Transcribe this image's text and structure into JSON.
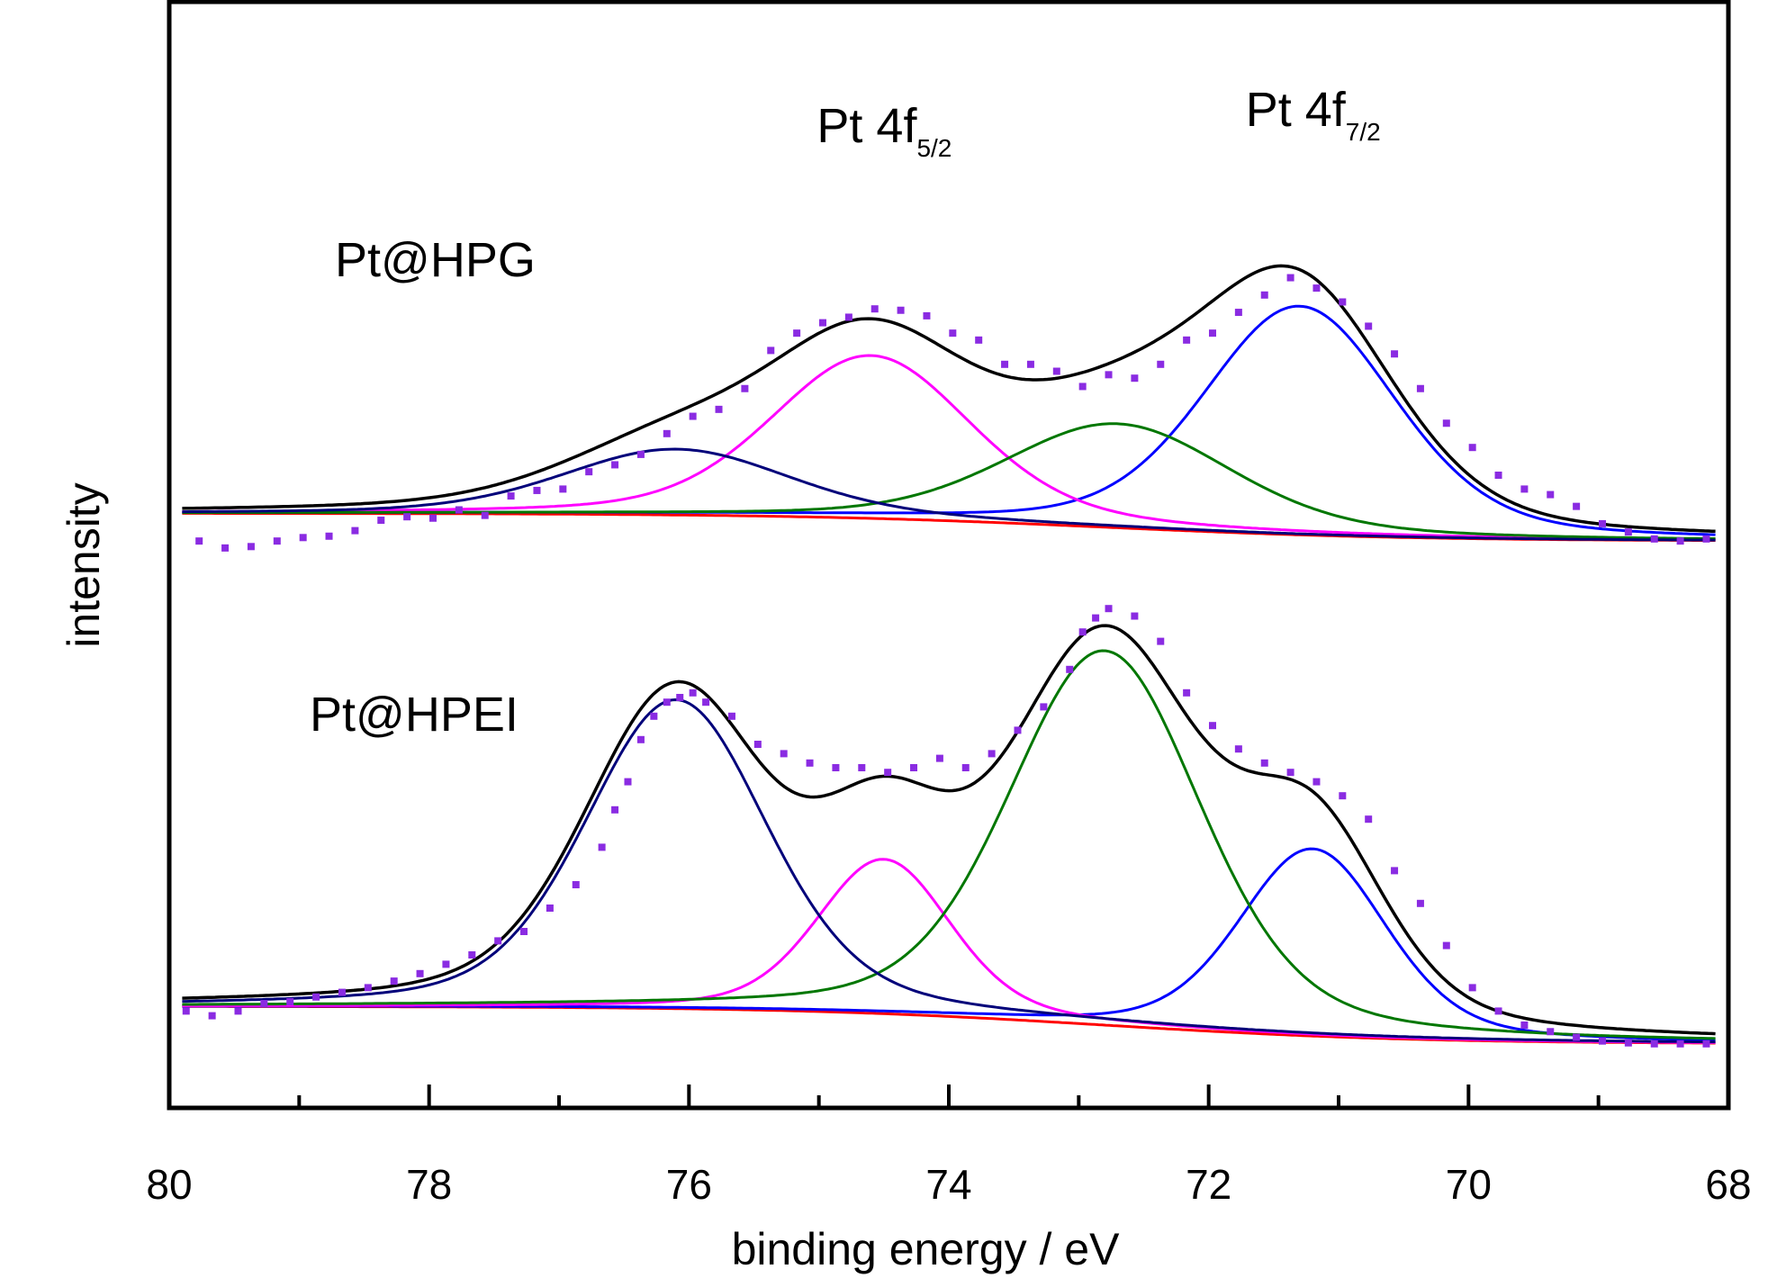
{
  "chart_data": {
    "type": "line",
    "xlabel": "binding energy / eV",
    "ylabel": "intensity",
    "xlim": [
      80,
      68
    ],
    "x_reversed": true,
    "xticks_major": [
      80,
      78,
      76,
      74,
      72,
      70,
      68
    ],
    "xticks_minor": [
      79,
      77,
      75,
      73,
      71,
      69
    ],
    "yticks": [],
    "grid": false,
    "legend": "none",
    "colors": {
      "data": "#8a2be2",
      "envelope": "#000000",
      "pt0_f72": "#0000ff",
      "pt0_f52": "#ff00ff",
      "pt2_f72": "#007700",
      "pt2_f52": "#00007a",
      "background": "#ff0000"
    },
    "annotations": [
      {
        "text": "Pt 4f",
        "sub": "5/2",
        "x": 74.6
      },
      {
        "text": "Pt 4f",
        "sub": "7/2",
        "x": 71.3
      }
    ],
    "panels": [
      {
        "label": "Pt@HPG",
        "background": {
          "start": 0.45,
          "end": 0.05,
          "center": 72.8,
          "width": 1.2
        },
        "components": [
          {
            "color_key": "pt0_f72",
            "center": 71.3,
            "sigma": 0.72,
            "amp": 3.3
          },
          {
            "color_key": "pt0_f52",
            "center": 74.6,
            "sigma": 0.75,
            "amp": 2.35
          },
          {
            "color_key": "pt2_f72",
            "center": 72.7,
            "sigma": 0.85,
            "amp": 1.5
          },
          {
            "color_key": "pt2_f52",
            "center": 76.1,
            "sigma": 0.85,
            "amp": 0.95
          }
        ],
        "data_points": [
          [
            79.77,
            0.05
          ],
          [
            79.57,
            -0.05
          ],
          [
            79.37,
            -0.03
          ],
          [
            79.17,
            0.05
          ],
          [
            78.97,
            0.1
          ],
          [
            78.77,
            0.12
          ],
          [
            78.57,
            0.2
          ],
          [
            78.37,
            0.35
          ],
          [
            78.17,
            0.4
          ],
          [
            77.97,
            0.38
          ],
          [
            77.77,
            0.5
          ],
          [
            77.57,
            0.42
          ],
          [
            77.37,
            0.7
          ],
          [
            77.17,
            0.78
          ],
          [
            76.97,
            0.8
          ],
          [
            76.77,
            1.05
          ],
          [
            76.57,
            1.15
          ],
          [
            76.37,
            1.3
          ],
          [
            76.17,
            1.6
          ],
          [
            75.97,
            1.85
          ],
          [
            75.77,
            1.95
          ],
          [
            75.57,
            2.25
          ],
          [
            75.37,
            2.8
          ],
          [
            75.17,
            3.05
          ],
          [
            74.97,
            3.2
          ],
          [
            74.77,
            3.28
          ],
          [
            74.57,
            3.4
          ],
          [
            74.37,
            3.38
          ],
          [
            74.17,
            3.3
          ],
          [
            73.97,
            3.05
          ],
          [
            73.77,
            2.95
          ],
          [
            73.57,
            2.6
          ],
          [
            73.37,
            2.6
          ],
          [
            73.17,
            2.5
          ],
          [
            72.97,
            2.28
          ],
          [
            72.77,
            2.45
          ],
          [
            72.57,
            2.4
          ],
          [
            72.37,
            2.6
          ],
          [
            72.17,
            2.95
          ],
          [
            71.97,
            3.05
          ],
          [
            71.77,
            3.35
          ],
          [
            71.57,
            3.6
          ],
          [
            71.37,
            3.85
          ],
          [
            71.17,
            3.7
          ],
          [
            70.97,
            3.5
          ],
          [
            70.77,
            3.15
          ],
          [
            70.57,
            2.75
          ],
          [
            70.37,
            2.25
          ],
          [
            70.17,
            1.75
          ],
          [
            69.97,
            1.4
          ],
          [
            69.77,
            1.0
          ],
          [
            69.57,
            0.8
          ],
          [
            69.37,
            0.72
          ],
          [
            69.17,
            0.55
          ],
          [
            68.97,
            0.3
          ],
          [
            68.77,
            0.18
          ],
          [
            68.57,
            0.08
          ],
          [
            68.37,
            0.05
          ],
          [
            68.17,
            0.08
          ]
        ]
      },
      {
        "label": "Pt@HPEI",
        "background": {
          "start": 0.45,
          "end": 0.05,
          "center": 72.8,
          "width": 1.2
        },
        "components": [
          {
            "color_key": "pt0_f72",
            "center": 71.2,
            "sigma": 0.55,
            "amp": 2.0
          },
          {
            "color_key": "pt0_f52",
            "center": 74.5,
            "sigma": 0.5,
            "amp": 1.65
          },
          {
            "color_key": "pt2_f72",
            "center": 72.8,
            "sigma": 0.72,
            "amp": 4.0
          },
          {
            "color_key": "pt2_f52",
            "center": 76.1,
            "sigma": 0.68,
            "amp": 3.3
          }
        ],
        "data_points": [
          [
            79.87,
            0.4
          ],
          [
            79.67,
            0.35
          ],
          [
            79.47,
            0.4
          ],
          [
            79.27,
            0.48
          ],
          [
            79.07,
            0.5
          ],
          [
            78.87,
            0.55
          ],
          [
            78.67,
            0.6
          ],
          [
            78.47,
            0.65
          ],
          [
            78.27,
            0.72
          ],
          [
            78.07,
            0.8
          ],
          [
            77.87,
            0.9
          ],
          [
            77.67,
            1.0
          ],
          [
            77.47,
            1.15
          ],
          [
            77.27,
            1.25
          ],
          [
            77.07,
            1.5
          ],
          [
            76.87,
            1.75
          ],
          [
            76.67,
            2.15
          ],
          [
            76.57,
            2.55
          ],
          [
            76.47,
            2.85
          ],
          [
            76.37,
            3.3
          ],
          [
            76.27,
            3.55
          ],
          [
            76.17,
            3.7
          ],
          [
            76.07,
            3.75
          ],
          [
            75.97,
            3.8
          ],
          [
            75.87,
            3.7
          ],
          [
            75.67,
            3.55
          ],
          [
            75.47,
            3.25
          ],
          [
            75.27,
            3.15
          ],
          [
            75.07,
            3.05
          ],
          [
            74.87,
            3.0
          ],
          [
            74.67,
            3.0
          ],
          [
            74.47,
            2.95
          ],
          [
            74.27,
            3.0
          ],
          [
            74.07,
            3.1
          ],
          [
            73.87,
            3.0
          ],
          [
            73.67,
            3.15
          ],
          [
            73.47,
            3.4
          ],
          [
            73.27,
            3.65
          ],
          [
            73.07,
            4.05
          ],
          [
            72.97,
            4.45
          ],
          [
            72.87,
            4.6
          ],
          [
            72.77,
            4.7
          ],
          [
            72.57,
            4.62
          ],
          [
            72.37,
            4.35
          ],
          [
            72.17,
            3.8
          ],
          [
            71.97,
            3.45
          ],
          [
            71.77,
            3.2
          ],
          [
            71.57,
            3.05
          ],
          [
            71.37,
            2.95
          ],
          [
            71.17,
            2.85
          ],
          [
            70.97,
            2.7
          ],
          [
            70.77,
            2.45
          ],
          [
            70.57,
            1.9
          ],
          [
            70.37,
            1.55
          ],
          [
            70.17,
            1.1
          ],
          [
            69.97,
            0.65
          ],
          [
            69.77,
            0.4
          ],
          [
            69.57,
            0.25
          ],
          [
            69.37,
            0.18
          ],
          [
            69.17,
            0.12
          ],
          [
            68.97,
            0.08
          ],
          [
            68.77,
            0.06
          ],
          [
            68.57,
            0.05
          ],
          [
            68.37,
            0.05
          ],
          [
            68.17,
            0.05
          ]
        ]
      }
    ]
  }
}
